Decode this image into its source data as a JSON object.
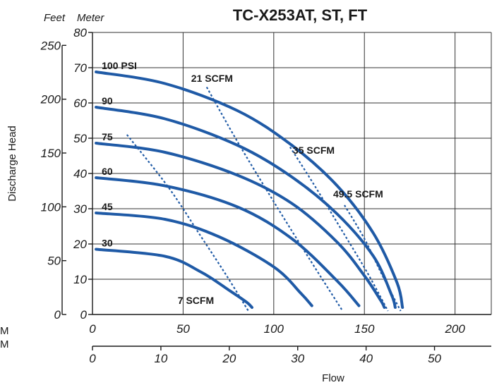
{
  "chart_data": {
    "type": "line",
    "title": "TC-X253AT, ST, FT",
    "head_units": [
      "Feet",
      "Meter"
    ],
    "ylabel": "Discharge Head",
    "xlabel": "Flow",
    "x_primary": {
      "ticks": [
        0,
        50,
        100,
        150,
        200
      ],
      "lim": [
        0,
        220
      ]
    },
    "x_secondary": {
      "ticks": [
        0,
        10,
        20,
        30,
        40,
        50
      ],
      "lim": [
        0,
        58.3
      ]
    },
    "y_meter": {
      "ticks": [
        0,
        10,
        20,
        30,
        40,
        50,
        60,
        70,
        80
      ],
      "lim": [
        0,
        80
      ]
    },
    "y_feet": {
      "ticks": [
        0,
        50,
        100,
        150,
        200,
        250
      ],
      "lim": [
        0,
        262
      ]
    },
    "grid": true,
    "colors": {
      "curve": "#1f5aa6",
      "scfm": "#1f5aa6"
    },
    "series": [
      {
        "name": "100 PSI",
        "x": [
          2,
          40,
          80,
          110,
          135,
          155,
          168,
          171
        ],
        "y": [
          68.8,
          65.5,
          57.8,
          48,
          36.5,
          23,
          9,
          2
        ]
      },
      {
        "name": "90",
        "x": [
          2,
          40,
          80,
          110,
          135,
          155,
          165,
          167
        ],
        "y": [
          58.8,
          55.5,
          48,
          39,
          28.5,
          16.5,
          5.5,
          2
        ]
      },
      {
        "name": "75",
        "x": [
          2,
          40,
          80,
          110,
          135,
          150,
          159,
          161
        ],
        "y": [
          48.6,
          46,
          39.5,
          31.5,
          20.5,
          11,
          4,
          2
        ]
      },
      {
        "name": "60",
        "x": [
          2,
          40,
          80,
          110,
          135,
          147
        ],
        "y": [
          38.8,
          36.5,
          30.5,
          21.5,
          9.5,
          2.5
        ]
      },
      {
        "name": "45",
        "x": [
          2,
          40,
          70,
          100,
          115,
          121
        ],
        "y": [
          28.8,
          27,
          22,
          13.5,
          6,
          2.5
        ]
      },
      {
        "name": "30",
        "x": [
          2,
          40,
          60,
          75,
          85,
          88
        ],
        "y": [
          18.5,
          16.5,
          12,
          7,
          3.5,
          2
        ]
      }
    ],
    "scfm_lines": [
      {
        "name": "7 SCFM",
        "x": [
          19,
          42,
          60,
          74,
          86
        ],
        "y": [
          51,
          36,
          22,
          11,
          1
        ]
      },
      {
        "name": "21 SCFM",
        "x": [
          63,
          80,
          100,
          120,
          138
        ],
        "y": [
          64.5,
          49,
          32,
          15.5,
          1
        ]
      },
      {
        "name": "35 SCFM",
        "x": [
          109,
          122,
          138,
          152,
          163
        ],
        "y": [
          47.5,
          37,
          23.5,
          11.5,
          1
        ]
      },
      {
        "name": "49.5 SCFM",
        "x": [
          139,
          150,
          160,
          170
        ],
        "y": [
          31,
          21.5,
          11,
          1
        ]
      }
    ],
    "stray_text": [
      "M",
      "M"
    ]
  }
}
